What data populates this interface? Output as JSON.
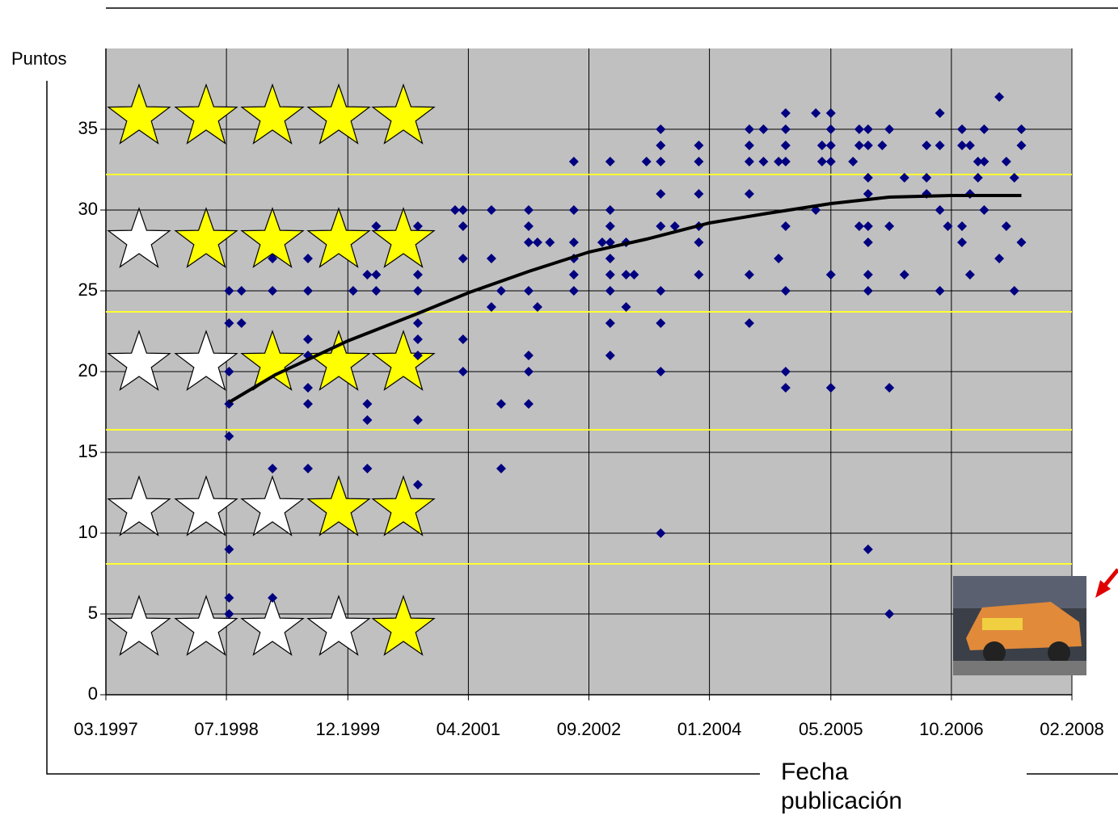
{
  "chart_data": {
    "type": "scatter",
    "ylabel": "Puntos",
    "xlabel": "Fecha publicación",
    "xlim": [
      1997.2,
      2008.1
    ],
    "ylim": [
      0,
      40
    ],
    "xticks": [
      {
        "value": 1997.2,
        "label": "03.1997"
      },
      {
        "value": 1998.56,
        "label": "07.1998"
      },
      {
        "value": 1999.93,
        "label": "12.1999"
      },
      {
        "value": 2001.29,
        "label": "04.2001"
      },
      {
        "value": 2002.65,
        "label": "09.2002"
      },
      {
        "value": 2004.01,
        "label": "01.2004"
      },
      {
        "value": 2005.38,
        "label": "05.2005"
      },
      {
        "value": 2006.74,
        "label": "10.2006"
      },
      {
        "value": 2008.1,
        "label": "02.2008"
      }
    ],
    "yticks": [
      0,
      5,
      10,
      15,
      20,
      25,
      30,
      35
    ],
    "grid": true,
    "thresholds": [
      32.2,
      23.7,
      16.4,
      8.1
    ],
    "threshold_color": "#ffff33",
    "series": [
      {
        "color": "#000080",
        "mode": "markers",
        "x": [
          1998.59,
          1998.59,
          1998.59,
          1998.59,
          1998.59,
          1998.59,
          1998.59,
          1998.59,
          1998.73,
          1998.73,
          1999.08,
          1999.08,
          1999.08,
          1999.08,
          1999.48,
          1999.48,
          1999.48,
          1999.48,
          1999.48,
          1999.48,
          1999.48,
          1999.99,
          2000.15,
          2000.15,
          2000.15,
          2000.15,
          2000.25,
          2000.25,
          2000.25,
          2000.72,
          2000.72,
          2000.72,
          2000.72,
          2000.72,
          2000.72,
          2000.72,
          2000.72,
          2001.14,
          2001.23,
          2001.23,
          2001.23,
          2001.23,
          2001.23,
          2001.55,
          2001.55,
          2001.55,
          2001.66,
          2001.66,
          2001.66,
          2001.97,
          2001.97,
          2001.97,
          2001.97,
          2001.97,
          2001.97,
          2001.97,
          2002.07,
          2002.07,
          2002.21,
          2002.48,
          2002.48,
          2002.48,
          2002.48,
          2002.48,
          2002.48,
          2002.8,
          2002.89,
          2002.89,
          2002.89,
          2002.89,
          2002.89,
          2002.89,
          2002.89,
          2002.89,
          2002.89,
          2003.07,
          2003.07,
          2003.07,
          2003.16,
          2003.3,
          2003.46,
          2003.46,
          2003.46,
          2003.46,
          2003.46,
          2003.46,
          2003.46,
          2003.46,
          2003.46,
          2003.62,
          2003.89,
          2003.89,
          2003.89,
          2003.89,
          2003.89,
          2003.89,
          2004.46,
          2004.46,
          2004.46,
          2004.46,
          2004.46,
          2004.46,
          2004.62,
          2004.62,
          2004.79,
          2004.79,
          2004.87,
          2004.87,
          2004.87,
          2004.87,
          2004.87,
          2004.87,
          2004.87,
          2004.87,
          2005.21,
          2005.21,
          2005.28,
          2005.28,
          2005.38,
          2005.38,
          2005.38,
          2005.38,
          2005.38,
          2005.38,
          2005.63,
          2005.7,
          2005.7,
          2005.7,
          2005.8,
          2005.8,
          2005.8,
          2005.8,
          2005.8,
          2005.8,
          2005.8,
          2005.8,
          2005.8,
          2005.96,
          2006.04,
          2006.04,
          2006.04,
          2006.04,
          2006.21,
          2006.21,
          2006.46,
          2006.46,
          2006.46,
          2006.61,
          2006.61,
          2006.61,
          2006.61,
          2006.7,
          2006.86,
          2006.86,
          2006.86,
          2006.86,
          2006.95,
          2006.95,
          2006.95,
          2007.04,
          2007.04,
          2007.11,
          2007.11,
          2007.11,
          2007.28,
          2007.28,
          2007.36,
          2007.36,
          2007.45,
          2007.45,
          2007.53,
          2007.53,
          2007.53
        ],
        "values": [
          25,
          23,
          20,
          18,
          16,
          9,
          6,
          5,
          25,
          23,
          27,
          25,
          14,
          6,
          27,
          25,
          22,
          21,
          19,
          18,
          14,
          25,
          26,
          18,
          17,
          14,
          29,
          26,
          25,
          29,
          26,
          25,
          23,
          22,
          21,
          17,
          13,
          30,
          30,
          29,
          27,
          22,
          20,
          30,
          27,
          24,
          25,
          18,
          14,
          30,
          29,
          28,
          25,
          21,
          20,
          18,
          28,
          24,
          28,
          33,
          30,
          28,
          27,
          26,
          25,
          28,
          33,
          30,
          29,
          28,
          27,
          26,
          25,
          23,
          21,
          28,
          26,
          24,
          26,
          33,
          35,
          34,
          33,
          31,
          29,
          25,
          23,
          20,
          10,
          29,
          34,
          33,
          31,
          29,
          28,
          26,
          35,
          34,
          33,
          31,
          26,
          23,
          35,
          33,
          33,
          27,
          36,
          35,
          34,
          33,
          29,
          25,
          20,
          19,
          36,
          30,
          34,
          33,
          36,
          35,
          34,
          33,
          26,
          19,
          33,
          35,
          34,
          29,
          35,
          34,
          32,
          31,
          29,
          28,
          26,
          25,
          9,
          34,
          35,
          29,
          19,
          5,
          32,
          26,
          34,
          32,
          31,
          36,
          34,
          30,
          25,
          29,
          35,
          34,
          29,
          28,
          34,
          31,
          26,
          33,
          32,
          35,
          33,
          30,
          37,
          27,
          33,
          29,
          32,
          25,
          35,
          34,
          28
        ]
      },
      {
        "color": "#000000",
        "mode": "line",
        "x": [
          1998.59,
          1999.11,
          1999.93,
          2000.72,
          2001.3,
          2001.97,
          2002.65,
          2003.3,
          2004.01,
          2004.67,
          2005.38,
          2006.04,
          2006.74,
          2007.53
        ],
        "values": [
          18.1,
          19.8,
          21.9,
          23.6,
          24.9,
          26.2,
          27.4,
          28.2,
          29.2,
          29.8,
          30.4,
          30.8,
          30.9,
          30.9
        ]
      }
    ]
  }
}
